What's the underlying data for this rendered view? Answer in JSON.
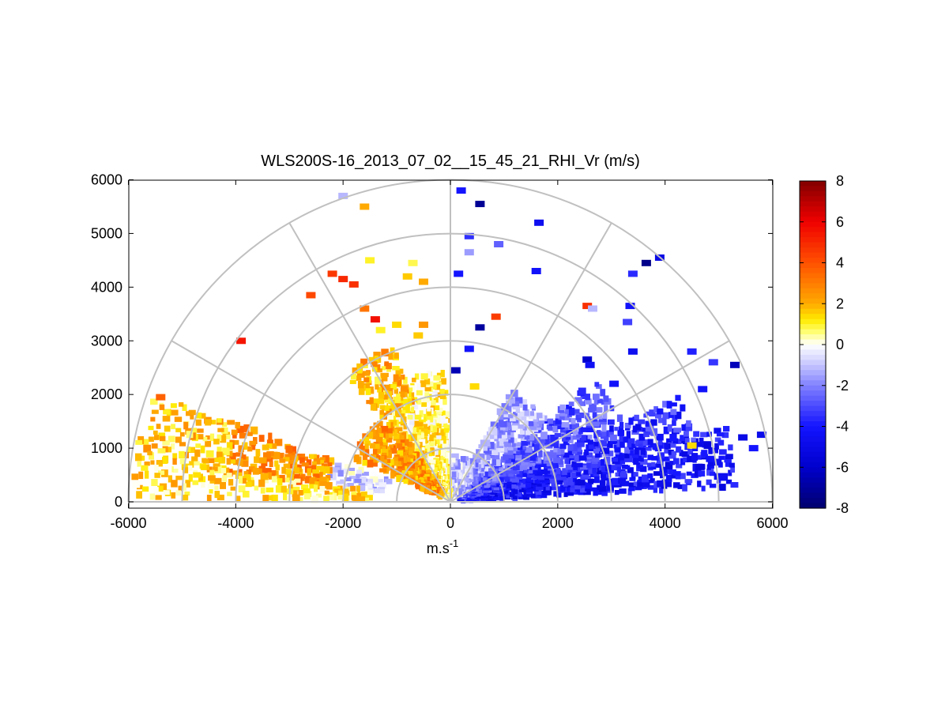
{
  "chart_data": {
    "type": "heatmap",
    "title": "WLS200S-16_2013_07_02__15_45_21_RHI_Vr (m/s)",
    "xlabel": "m.s",
    "xlabel_superscript": "-1",
    "ylabel": "",
    "xlim": [
      -6000,
      6000
    ],
    "ylim": [
      0,
      6000
    ],
    "x_ticks": [
      "-6000",
      "-4000",
      "-2000",
      "0",
      "2000",
      "4000",
      "6000"
    ],
    "y_ticks": [
      "0",
      "1000",
      "2000",
      "3000",
      "4000",
      "5000",
      "6000"
    ],
    "grid": "polar range rings every 1000 m to 6000 m, radial spokes every 30 degrees",
    "range_rings": [
      1000,
      2000,
      3000,
      4000,
      5000,
      6000
    ],
    "spoke_angles_deg": [
      0,
      30,
      60,
      90,
      120,
      150,
      180
    ],
    "colorbar": {
      "range": [
        -8,
        8
      ],
      "ticks": [
        "8",
        "6",
        "4",
        "2",
        "0",
        "-2",
        "-4",
        "-6",
        "-8"
      ],
      "palette": "blue (negative) - white (0) - yellow - red - dark red (positive)"
    },
    "sectors": [
      {
        "az_from": 3,
        "az_to": 14,
        "r_from": 200,
        "r_to": 5300,
        "value": -4.2,
        "density": 0.93
      },
      {
        "az_from": 14,
        "az_to": 24,
        "r_from": 200,
        "r_to": 4700,
        "value": -3.6,
        "density": 0.88
      },
      {
        "az_from": 24,
        "az_to": 40,
        "r_from": 200,
        "r_to": 3500,
        "value": -2.8,
        "density": 0.8
      },
      {
        "az_from": 40,
        "az_to": 60,
        "r_from": 200,
        "r_to": 2300,
        "value": -1.6,
        "density": 0.7
      },
      {
        "az_from": 60,
        "az_to": 88,
        "r_from": 150,
        "r_to": 800,
        "value": -1.0,
        "density": 0.55
      },
      {
        "az_from": 92,
        "az_to": 125,
        "r_from": 100,
        "r_to": 2400,
        "value": 0.8,
        "density": 0.7
      },
      {
        "az_from": 110,
        "az_to": 128,
        "r_from": 2000,
        "r_to": 3000,
        "value": 2.0,
        "density": 0.75
      },
      {
        "az_from": 125,
        "az_to": 155,
        "r_from": 200,
        "r_to": 2000,
        "value": 2.4,
        "density": 0.75
      },
      {
        "az_from": 160,
        "az_to": 172,
        "r_from": 1200,
        "r_to": 2300,
        "value": -0.8,
        "density": 0.55
      },
      {
        "az_from": 160,
        "az_to": 172,
        "r_from": 2300,
        "r_to": 4200,
        "value": 2.6,
        "density": 0.8
      },
      {
        "az_from": 160,
        "az_to": 172,
        "r_from": 4200,
        "r_to": 5900,
        "value": 1.6,
        "density": 0.8
      },
      {
        "az_from": 172,
        "az_to": 179,
        "r_from": 1500,
        "r_to": 5900,
        "value": 1.2,
        "density": 0.8
      }
    ],
    "gates": [
      {
        "x": -1800,
        "y": 4050,
        "value": 4.8
      },
      {
        "x": -2000,
        "y": 4150,
        "value": 5.0
      },
      {
        "x": -2200,
        "y": 4250,
        "value": 4.6
      },
      {
        "x": -2600,
        "y": 3850,
        "value": 4.2
      },
      {
        "x": -3900,
        "y": 3000,
        "value": 5.5
      },
      {
        "x": -5400,
        "y": 1950,
        "value": 3.6
      },
      {
        "x": -1600,
        "y": 3600,
        "value": 3.2
      },
      {
        "x": -1400,
        "y": 3400,
        "value": 5.6
      },
      {
        "x": -1300,
        "y": 3200,
        "value": 1.0
      },
      {
        "x": -1000,
        "y": 3300,
        "value": 1.4
      },
      {
        "x": -1500,
        "y": 4500,
        "value": 1.0
      },
      {
        "x": -1600,
        "y": 5500,
        "value": 2.0
      },
      {
        "x": -2000,
        "y": 5700,
        "value": -1.2
      },
      {
        "x": -800,
        "y": 4200,
        "value": 1.6
      },
      {
        "x": -500,
        "y": 4100,
        "value": 2.0
      },
      {
        "x": -700,
        "y": 4450,
        "value": 0.8
      },
      {
        "x": -500,
        "y": 3300,
        "value": 2.4
      },
      {
        "x": -600,
        "y": 3100,
        "value": 1.6
      },
      {
        "x": 200,
        "y": 5800,
        "value": -4.0
      },
      {
        "x": 550,
        "y": 5550,
        "value": -7.2
      },
      {
        "x": 350,
        "y": 4950,
        "value": -3.5
      },
      {
        "x": 350,
        "y": 4650,
        "value": -1.6
      },
      {
        "x": 150,
        "y": 4250,
        "value": -4.0
      },
      {
        "x": 900,
        "y": 4800,
        "value": -2.6
      },
      {
        "x": 1650,
        "y": 5200,
        "value": -4.6
      },
      {
        "x": 1600,
        "y": 4300,
        "value": -4.2
      },
      {
        "x": 850,
        "y": 3450,
        "value": 4.5
      },
      {
        "x": 550,
        "y": 3250,
        "value": -7.0
      },
      {
        "x": 350,
        "y": 2850,
        "value": -4.2
      },
      {
        "x": 100,
        "y": 2450,
        "value": -6.5
      },
      {
        "x": 450,
        "y": 2150,
        "value": 1.4
      },
      {
        "x": 2550,
        "y": 3650,
        "value": 4.8
      },
      {
        "x": 2650,
        "y": 3600,
        "value": -1.2
      },
      {
        "x": 3400,
        "y": 4250,
        "value": -3.6
      },
      {
        "x": 3650,
        "y": 4450,
        "value": -7.4
      },
      {
        "x": 3900,
        "y": 4550,
        "value": -5.0
      },
      {
        "x": 3350,
        "y": 3650,
        "value": -4.2
      },
      {
        "x": 3300,
        "y": 3350,
        "value": -3.2
      },
      {
        "x": 3400,
        "y": 2800,
        "value": -4.6
      },
      {
        "x": 2550,
        "y": 2650,
        "value": -6.0
      },
      {
        "x": 2600,
        "y": 2550,
        "value": -4.4
      },
      {
        "x": 4500,
        "y": 2800,
        "value": -3.8
      },
      {
        "x": 4900,
        "y": 2600,
        "value": -3.4
      },
      {
        "x": 5300,
        "y": 2550,
        "value": -6.4
      },
      {
        "x": 4700,
        "y": 2100,
        "value": -4.2
      },
      {
        "x": 3050,
        "y": 2200,
        "value": -4.2
      },
      {
        "x": 5800,
        "y": 1250,
        "value": -4.8
      },
      {
        "x": 5450,
        "y": 1200,
        "value": -5.0
      },
      {
        "x": 4500,
        "y": 1050,
        "value": 1.4
      },
      {
        "x": 5650,
        "y": 1000,
        "value": -4.0
      },
      {
        "x": 4650,
        "y": 650,
        "value": -5.4
      },
      {
        "x": 4850,
        "y": 800,
        "value": -4.2
      }
    ]
  }
}
